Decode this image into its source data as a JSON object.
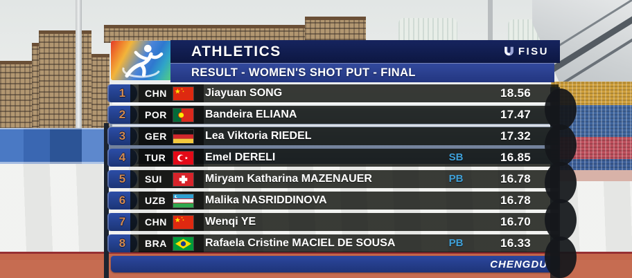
{
  "header": {
    "sport": "ATHLETICS",
    "event": "RESULT - WOMEN'S SHOT PUT - FINAL",
    "brand": "FISU"
  },
  "footer": {
    "host_city": "CHENGDU"
  },
  "results": {
    "columns": [
      "rank",
      "country",
      "flag",
      "name",
      "note",
      "mark"
    ],
    "rows": [
      {
        "rank": "1",
        "country": "CHN",
        "flag": "cn",
        "name": "Jiayuan SONG",
        "note": "",
        "mark": "18.56"
      },
      {
        "rank": "2",
        "country": "POR",
        "flag": "pt",
        "name": "Bandeira ELIANA",
        "note": "",
        "mark": "17.47"
      },
      {
        "rank": "3",
        "country": "GER",
        "flag": "de",
        "name": "Lea Viktoria RIEDEL",
        "note": "",
        "mark": "17.32"
      },
      {
        "rank": "4",
        "country": "TUR",
        "flag": "tr",
        "name": "Emel DERELI",
        "note": "SB",
        "mark": "16.85"
      },
      {
        "rank": "5",
        "country": "SUI",
        "flag": "ch",
        "name": "Miryam Katharina MAZENAUER",
        "note": "PB",
        "mark": "16.78"
      },
      {
        "rank": "6",
        "country": "UZB",
        "flag": "uz",
        "name": "Malika NASRIDDINOVA",
        "note": "",
        "mark": "16.78"
      },
      {
        "rank": "7",
        "country": "CHN",
        "flag": "cn",
        "name": "Wenqi YE",
        "note": "",
        "mark": "16.70"
      },
      {
        "rank": "8",
        "country": "BRA",
        "flag": "br",
        "name": "Rafaela Cristine MACIEL DE SOUSA",
        "note": "PB",
        "mark": "16.33"
      }
    ]
  },
  "colors": {
    "title_bar": "#101c4e",
    "subtitle_bar": "#2a4190",
    "footer_bar": "#24418f",
    "rank_badge": "#1e3a86",
    "rank_number": "#d08a52",
    "record_note": "#3fa0d8",
    "row_background": "rgba(10,12,8,0.8)"
  }
}
